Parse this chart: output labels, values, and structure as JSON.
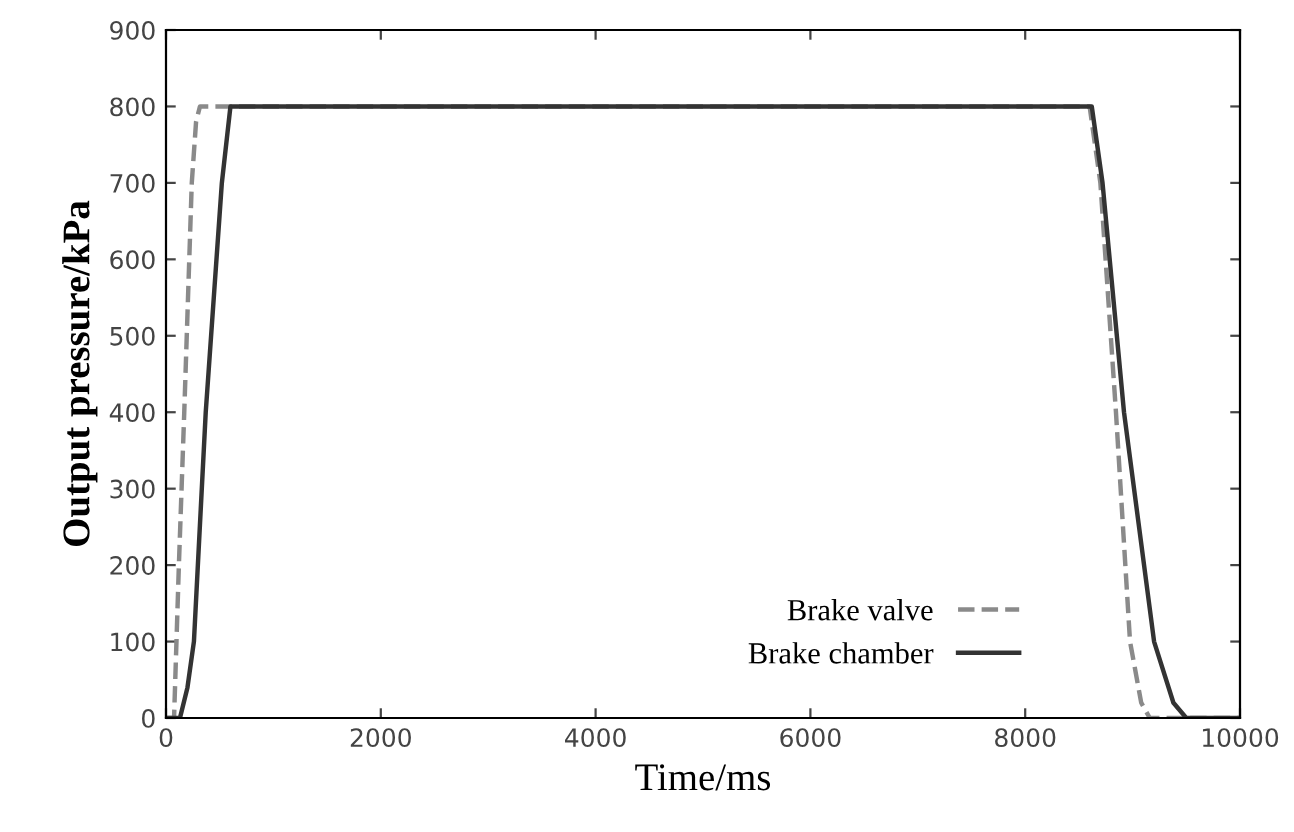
{
  "chart_data": {
    "type": "line",
    "xlabel": "Time/ms",
    "ylabel": "Output pressure/kPa",
    "xlim": [
      0,
      10000
    ],
    "ylim": [
      0,
      900
    ],
    "xticks": [
      0,
      2000,
      4000,
      6000,
      8000,
      10000
    ],
    "yticks": [
      0,
      100,
      200,
      300,
      400,
      500,
      600,
      700,
      800,
      900
    ],
    "grid": false,
    "legend": "bottom right",
    "marker": "none",
    "series": [
      {
        "name": "Brake valve",
        "color": "#8a8a8a",
        "line_style": "dashed",
        "x": [
          0,
          75,
          120,
          170,
          240,
          280,
          316,
          8600,
          8700,
          8845,
          8976,
          9080,
          9160,
          10000
        ],
        "values": [
          0,
          0,
          200,
          400,
          700,
          780,
          800,
          800,
          700,
          400,
          100,
          20,
          0,
          0
        ]
      },
      {
        "name": "Brake chamber",
        "color": "#333333",
        "line_style": "solid",
        "x": [
          0,
          130,
          200,
          260,
          370,
          450,
          520,
          600,
          8620,
          8720,
          8920,
          9200,
          9380,
          9500,
          10000
        ],
        "values": [
          0,
          0,
          40,
          100,
          400,
          560,
          700,
          800,
          800,
          700,
          400,
          100,
          20,
          0,
          0
        ]
      }
    ]
  }
}
